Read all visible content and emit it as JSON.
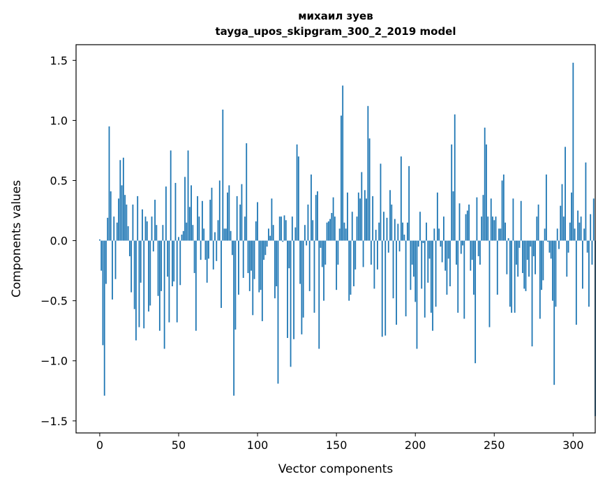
{
  "chart_data": {
    "type": "bar",
    "title": "михаил зуев",
    "subtitle": "tayga_upos_skipgram_300_2_2019 model",
    "xlabel": "Vector components",
    "ylabel": "Components values",
    "xlim": [
      -15,
      314
    ],
    "ylim": [
      -1.6,
      1.63
    ],
    "xticks": [
      0,
      50,
      100,
      150,
      200,
      250,
      300
    ],
    "xtick_labels": [
      "0",
      "50",
      "100",
      "150",
      "200",
      "250",
      "300"
    ],
    "yticks": [
      1.5,
      1.0,
      0.5,
      0.0,
      -0.5,
      -1.0,
      -1.5
    ],
    "ytick_labels": [
      "1.5",
      "1.0",
      "0.5",
      "0.0",
      "−0.5",
      "−1.0",
      "−1.5"
    ],
    "bar_color": "#1f77b4",
    "grid": false,
    "values": [
      0.01,
      -0.25,
      -0.87,
      -1.29,
      -0.36,
      0.19,
      0.95,
      0.41,
      -0.49,
      0.2,
      -0.32,
      0.15,
      0.35,
      0.67,
      0.46,
      0.69,
      0.38,
      0.3,
      0.12,
      -0.13,
      -0.43,
      0.3,
      -0.57,
      -0.83,
      0.37,
      -0.72,
      -0.35,
      0.26,
      -0.73,
      0.2,
      0.16,
      -0.59,
      -0.54,
      0.2,
      -0.09,
      0.34,
      0.13,
      -0.46,
      -0.75,
      -0.42,
      0.13,
      -0.9,
      0.45,
      -0.3,
      -0.68,
      0.75,
      -0.38,
      -0.34,
      0.48,
      -0.68,
      0.03,
      -0.37,
      0.05,
      0.08,
      0.53,
      0.15,
      0.75,
      0.28,
      0.46,
      0.13,
      -0.27,
      -0.75,
      0.37,
      0.2,
      -0.16,
      0.33,
      0.1,
      -0.16,
      -0.35,
      -0.15,
      0.34,
      0.44,
      -0.24,
      0.07,
      -0.17,
      0.17,
      0.5,
      -0.56,
      1.09,
      0.1,
      0.1,
      0.4,
      0.46,
      0.08,
      -0.12,
      -1.29,
      -0.74,
      0.37,
      -0.45,
      0.3,
      0.47,
      -0.31,
      0.2,
      0.81,
      -0.27,
      -0.42,
      -0.25,
      -0.62,
      -0.32,
      0.16,
      0.32,
      -0.43,
      -0.41,
      -0.67,
      -0.16,
      -0.12,
      -0.05,
      0.1,
      0.04,
      0.35,
      0.13,
      -0.48,
      -0.38,
      -1.19,
      0.2,
      0.2,
      -0.01,
      0.21,
      0.17,
      -0.81,
      -0.23,
      -1.05,
      0.2,
      -0.82,
      0.11,
      0.8,
      0.7,
      -0.36,
      -0.78,
      -0.64,
      0.13,
      -0.04,
      0.3,
      -0.42,
      0.55,
      0.17,
      -0.6,
      0.38,
      0.41,
      -0.9,
      -0.06,
      -0.22,
      -0.5,
      -0.2,
      0.15,
      0.16,
      0.18,
      0.23,
      0.36,
      0.2,
      -0.41,
      -0.2,
      0.1,
      1.04,
      1.29,
      0.15,
      0.1,
      0.4,
      -0.5,
      -0.45,
      0.24,
      -0.38,
      -0.24,
      0.2,
      0.4,
      0.35,
      0.57,
      -0.22,
      0.42,
      0.35,
      1.12,
      0.85,
      -0.2,
      0.37,
      -0.4,
      0.09,
      -0.24,
      0.15,
      0.64,
      -0.8,
      0.24,
      -0.79,
      0.19,
      -0.1,
      0.42,
      0.3,
      -0.48,
      0.18,
      -0.7,
      0.14,
      -0.09,
      0.7,
      0.15,
      0.05,
      -0.63,
      0.15,
      0.62,
      -0.41,
      -0.2,
      -0.3,
      -0.51,
      -0.9,
      -0.05,
      0.24,
      -0.4,
      -0.02,
      -0.64,
      0.15,
      -0.35,
      -0.15,
      -0.6,
      -0.75,
      0.1,
      -0.55,
      0.4,
      0.1,
      -0.05,
      -0.18,
      0.2,
      -0.25,
      -0.45,
      -0.15,
      -0.38,
      0.8,
      0.41,
      1.05,
      -0.2,
      -0.6,
      0.31,
      -0.11,
      -0.04,
      -0.65,
      0.22,
      0.25,
      0.3,
      -0.25,
      -0.16,
      -0.45,
      -1.02,
      0.36,
      -0.13,
      -0.2,
      0.2,
      0.38,
      0.94,
      0.8,
      0.2,
      -0.72,
      0.35,
      0.2,
      0.17,
      0.2,
      -0.45,
      0.1,
      0.1,
      0.5,
      0.55,
      0.15,
      -0.28,
      0.02,
      -0.55,
      -0.6,
      0.35,
      -0.6,
      -0.2,
      -0.3,
      -0.06,
      0.33,
      -0.27,
      -0.4,
      -0.42,
      -0.16,
      -0.3,
      -0.05,
      -0.88,
      -0.13,
      -0.28,
      0.2,
      0.3,
      -0.65,
      -0.41,
      -0.33,
      0.1,
      0.55,
      -0.01,
      -0.1,
      -0.15,
      -0.5,
      -1.2,
      -0.55,
      0.1,
      -0.07,
      0.29,
      0.47,
      0.2,
      0.78,
      -0.3,
      -0.1,
      0.15,
      0.4,
      1.48,
      0.1,
      -0.7,
      0.25,
      0.15,
      0.2,
      -0.4,
      0.1,
      0.65,
      -0.1,
      -0.55,
      0.22,
      -0.2,
      0.35,
      -1.46
    ]
  }
}
